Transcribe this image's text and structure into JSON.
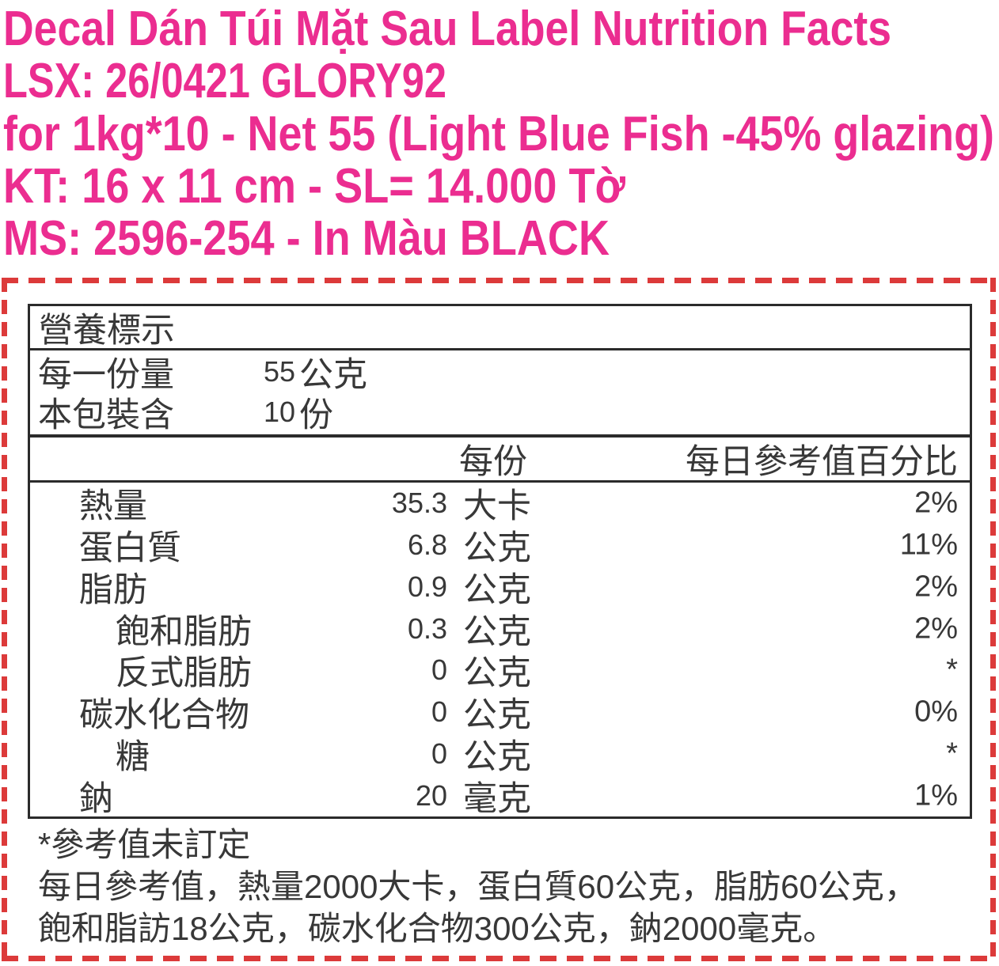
{
  "colors": {
    "proof_pink": "#EB2D90",
    "die_cut_red": "#DC3A3A",
    "label_ink": "#2B2B2B"
  },
  "proof_header": {
    "title_line": "Decal Dán Túi Mặt Sau Label Nutrition Facts",
    "order_line": "LSX: 26/0421 GLORY92",
    "spec_line": "for 1kg*10 - Net 55 (Light Blue Fish -45% glazing)",
    "size_line": "KT: 16 x 11 cm - SL= 14.000 Tờ",
    "code_line": "MS: 2596-254 - In Màu BLACK"
  },
  "label": {
    "title": "營養標示",
    "serving_rows": [
      {
        "label": "每一份量",
        "value": "55",
        "unit": "公克"
      },
      {
        "label": "本包裝含",
        "value": "10",
        "unit": "份"
      }
    ],
    "column_headers": {
      "per_serving": "每份",
      "daily_value_pct": "每日參考值百分比"
    },
    "nutrients": [
      {
        "name": "熱量",
        "value": "35.3",
        "unit": "大卡",
        "dv": "2%"
      },
      {
        "name": "蛋白質",
        "value": "6.8",
        "unit": "公克",
        "dv": "11%"
      },
      {
        "name": "脂肪",
        "value": "0.9",
        "unit": "公克",
        "dv": "2%"
      },
      {
        "name": "飽和脂肪",
        "value": "0.3",
        "unit": "公克",
        "dv": "2%"
      },
      {
        "name": "反式脂肪",
        "value": "0",
        "unit": "公克",
        "dv": "*"
      },
      {
        "name": "碳水化合物",
        "value": "0",
        "unit": "公克",
        "dv": "0%"
      },
      {
        "name": "糖",
        "value": "0",
        "unit": "公克",
        "dv": "*"
      },
      {
        "name": "鈉",
        "value": "20",
        "unit": "毫克",
        "dv": "1%"
      }
    ],
    "footnotes": [
      "*參考值未訂定",
      "每日參考值，熱量2000大卡，蛋白質60公克，脂肪60公克，",
      "飽和脂訪18公克，碳水化合物300公克，鈉2000毫克。"
    ]
  }
}
